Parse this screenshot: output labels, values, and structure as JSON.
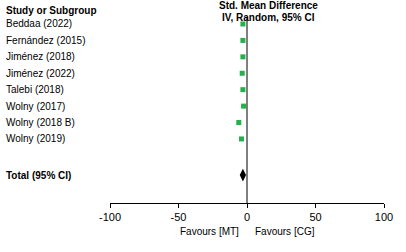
{
  "chart_data": {
    "type": "forest",
    "title": "Std. Mean Difference",
    "subtitle": "IV, Random, 95% CI",
    "column_header": "Study or Subgroup",
    "categories": [
      "Beddaa (2022)",
      "Fernández (2015)",
      "Jiménez (2018)",
      "Jiménez (2022)",
      "Talebi (2018)",
      "Wolny (2017)",
      "Wolny (2018 B)",
      "Wolny (2019)"
    ],
    "values": [
      -3,
      -3,
      -3,
      -3.5,
      -3,
      -2.5,
      -6,
      -4
    ],
    "color": "#22b14c",
    "marker": "square",
    "total": {
      "label": "Total (95% CI)",
      "value": -3,
      "color": "#000000",
      "marker": "diamond"
    },
    "reference_line": 0,
    "xlim": [
      -100,
      100
    ],
    "xticks": [
      -100,
      -50,
      0,
      50,
      100
    ],
    "annotations": [
      "Favours [MT]",
      "Favours [CG]"
    ],
    "grid": false
  }
}
